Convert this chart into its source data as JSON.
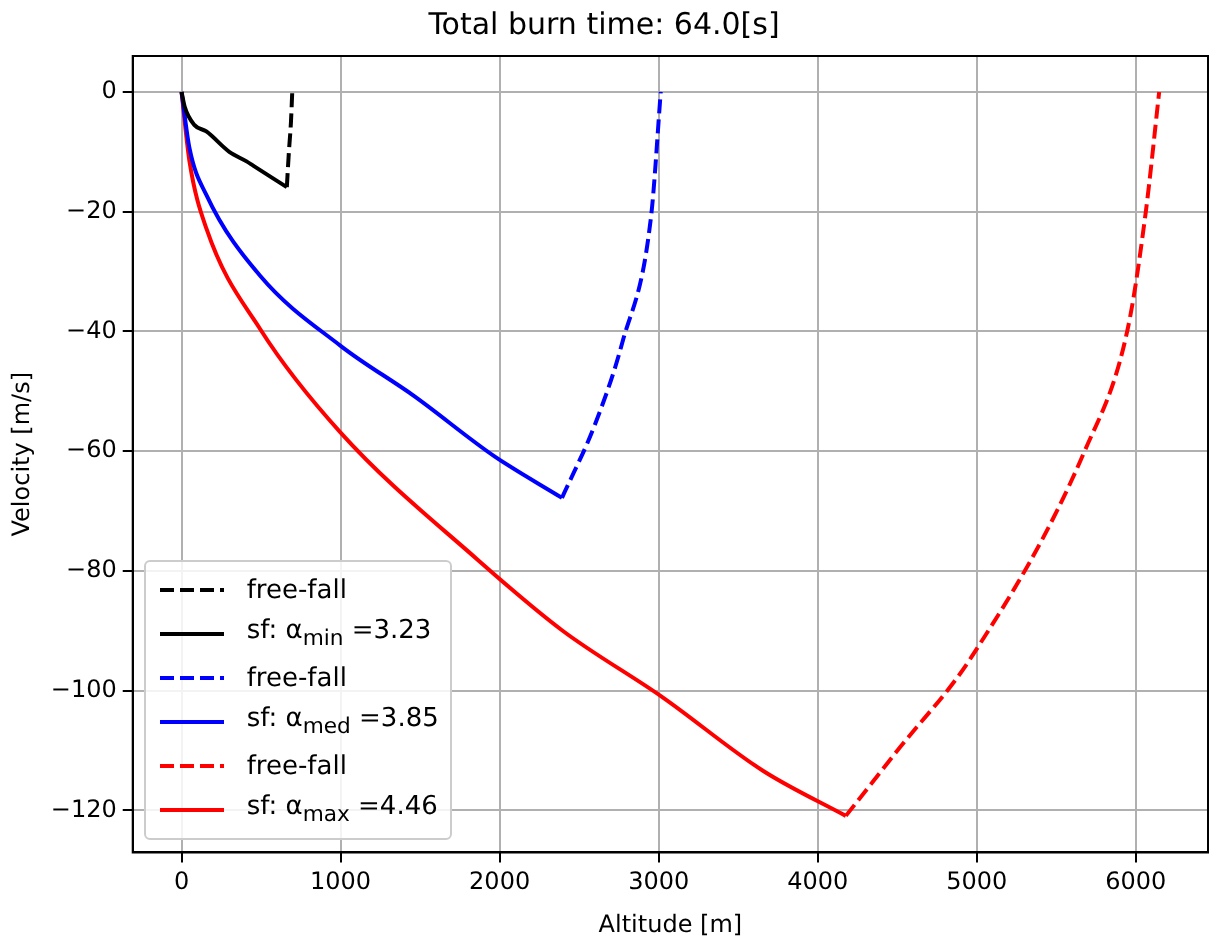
{
  "chart_data": {
    "type": "line",
    "title": "Total burn time: 64.0[s]",
    "xlabel": "Altitude [m]",
    "ylabel": "Velocity [m/s]",
    "xlim": [
      -307,
      6454
    ],
    "ylim": [
      -127,
      6
    ],
    "xticks": [
      0,
      1000,
      2000,
      3000,
      4000,
      5000,
      6000
    ],
    "yticks": [
      -120,
      -100,
      -80,
      -60,
      -40,
      -20,
      0
    ],
    "grid": true,
    "legend": "bottom left",
    "marker": "none",
    "series": [
      {
        "name": "free-fall",
        "color": "#000000",
        "line_style": "dashed",
        "x": [
          662,
          675,
          688,
          696
        ],
        "values": [
          -15.9,
          -10,
          -5,
          0
        ]
      },
      {
        "name": "sf: α$_{min}$ =3.23",
        "color": "#000000",
        "line_style": "solid",
        "x": [
          0,
          20,
          80,
          156,
          300,
          409,
          450,
          662
        ],
        "values": [
          0,
          -2.5,
          -5.5,
          -6.6,
          -10,
          -11.6,
          -12.3,
          -15.9
        ]
      },
      {
        "name": "free-fall",
        "color": "#0000ff",
        "line_style": "dashed",
        "x": [
          2392,
          2603,
          2772,
          2953,
          3013
        ],
        "values": [
          -67.8,
          -55.3,
          -41.8,
          -20.6,
          0
        ]
      },
      {
        "name": "sf: α$_{med}$ =3.85",
        "color": "#0000ff",
        "line_style": "solid",
        "x": [
          0,
          50,
          156,
          494,
          1000,
          1463,
          1970,
          2392
        ],
        "values": [
          0,
          -9.4,
          -17.2,
          -30.7,
          -42.4,
          -50.8,
          -60.9,
          -67.8
        ]
      },
      {
        "name": "free-fall",
        "color": "#ff0000",
        "line_style": "dashed",
        "x": [
          4177,
          4501,
          4966,
          5683,
          5949,
          6063,
          6147
        ],
        "values": [
          -120.9,
          -110,
          -94.4,
          -59.7,
          -39.6,
          -20,
          0
        ]
      },
      {
        "name": "sf: α$_{max}$ =4.46",
        "color": "#ff0000",
        "line_style": "solid",
        "x": [
          0,
          50,
          156,
          494,
          1000,
          1865,
          2392,
          3025,
          3658,
          4177
        ],
        "values": [
          0,
          -11.6,
          -22.8,
          -39.6,
          -56.9,
          -78.2,
          -89.9,
          -101.1,
          -113.4,
          -120.9
        ]
      }
    ]
  }
}
